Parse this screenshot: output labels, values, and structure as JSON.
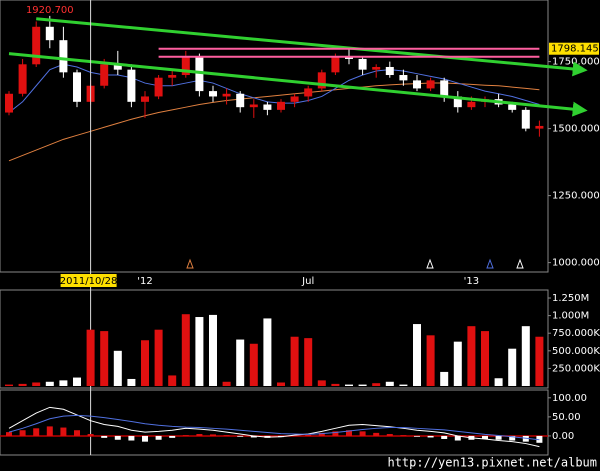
{
  "chart_data": [
    {
      "type": "candlestick",
      "categories": [
        null,
        null,
        null,
        null,
        null,
        null,
        "2011/10/28",
        null,
        null,
        null,
        "'12",
        null,
        null,
        null,
        null,
        null,
        null,
        null,
        null,
        null,
        null,
        null,
        "Jul",
        null,
        null,
        null,
        null,
        null,
        null,
        null,
        null,
        null,
        null,
        null,
        "'13",
        null,
        null,
        null,
        null,
        null
      ],
      "highlight_category": "2011/10/28",
      "ohlc": [
        [
          1560,
          1640,
          1550,
          1630
        ],
        [
          1630,
          1760,
          1620,
          1740
        ],
        [
          1740,
          1900,
          1730,
          1880
        ],
        [
          1880,
          1920.7,
          1800,
          1830
        ],
        [
          1830,
          1880,
          1690,
          1710
        ],
        [
          1710,
          1720,
          1580,
          1600
        ],
        [
          1600,
          1680,
          1590,
          1660
        ],
        [
          1660,
          1760,
          1650,
          1740
        ],
        [
          1740,
          1790,
          1700,
          1720
        ],
        [
          1720,
          1740,
          1580,
          1600
        ],
        [
          1600,
          1640,
          1540,
          1620
        ],
        [
          1620,
          1700,
          1610,
          1690
        ],
        [
          1690,
          1720,
          1660,
          1700
        ],
        [
          1700,
          1790,
          1690,
          1770
        ],
        [
          1770,
          1780,
          1620,
          1640
        ],
        [
          1640,
          1660,
          1600,
          1620
        ],
        [
          1620,
          1650,
          1590,
          1630
        ],
        [
          1630,
          1640,
          1560,
          1580
        ],
        [
          1580,
          1610,
          1540,
          1590
        ],
        [
          1590,
          1600,
          1550,
          1570
        ],
        [
          1570,
          1610,
          1560,
          1600
        ],
        [
          1600,
          1630,
          1580,
          1620
        ],
        [
          1620,
          1660,
          1600,
          1650
        ],
        [
          1650,
          1720,
          1640,
          1710
        ],
        [
          1710,
          1780,
          1700,
          1770
        ],
        [
          1770,
          1800,
          1740,
          1760
        ],
        [
          1760,
          1770,
          1700,
          1720
        ],
        [
          1720,
          1740,
          1690,
          1730
        ],
        [
          1730,
          1750,
          1690,
          1700
        ],
        [
          1700,
          1720,
          1660,
          1680
        ],
        [
          1680,
          1700,
          1640,
          1650
        ],
        [
          1650,
          1690,
          1640,
          1680
        ],
        [
          1680,
          1690,
          1600,
          1620
        ],
        [
          1620,
          1640,
          1560,
          1580
        ],
        [
          1580,
          1620,
          1570,
          1600
        ],
        [
          1600,
          1620,
          1580,
          1610
        ],
        [
          1610,
          1630,
          1580,
          1590
        ],
        [
          1590,
          1600,
          1560,
          1570
        ],
        [
          1570,
          1580,
          1490,
          1500
        ],
        [
          1500,
          1530,
          1470,
          1510
        ]
      ],
      "up_color": "#e01010",
      "down_color": "#ffffff",
      "moving_averages": [
        {
          "color": "#e08040",
          "values": [
            1380,
            1400,
            1420,
            1440,
            1460,
            1475,
            1490,
            1505,
            1520,
            1535,
            1548,
            1560,
            1570,
            1580,
            1590,
            1598,
            1605,
            1610,
            1615,
            1620,
            1625,
            1630,
            1635,
            1640,
            1645,
            1650,
            1655,
            1660,
            1663,
            1666,
            1668,
            1670,
            1670,
            1668,
            1665,
            1662,
            1660,
            1655,
            1650,
            1645
          ]
        },
        {
          "color": "#5070e0",
          "values": [
            1560,
            1600,
            1660,
            1720,
            1740,
            1730,
            1710,
            1700,
            1700,
            1690,
            1670,
            1660,
            1660,
            1670,
            1680,
            1670,
            1650,
            1630,
            1615,
            1600,
            1595,
            1595,
            1605,
            1620,
            1650,
            1680,
            1700,
            1715,
            1720,
            1715,
            1705,
            1695,
            1685,
            1670,
            1655,
            1640,
            1630,
            1620,
            1605,
            1590
          ]
        }
      ],
      "trendlines": [
        {
          "color": "#30d030",
          "points": [
            [
              2,
              1910
            ],
            [
              42,
              1720
            ]
          ]
        },
        {
          "color": "#30d030",
          "points": [
            [
              0,
              1780
            ],
            [
              42,
              1570
            ]
          ]
        },
        {
          "color": "#ff5fa0",
          "points": [
            [
              11,
              1798.145
            ],
            [
              39,
              1798.145
            ]
          ]
        },
        {
          "color": "#ff5fa0",
          "points": [
            [
              11,
              1768
            ],
            [
              39,
              1768
            ]
          ]
        }
      ],
      "high_label": {
        "value": 1920.7,
        "label": "1920.700"
      },
      "last_price": {
        "value": 1798.145,
        "label": "1798.145"
      },
      "ylim": [
        965,
        1965
      ],
      "yticks": [
        {
          "value": 1000,
          "label": "1000.000"
        },
        {
          "value": 1250,
          "label": "1250.000"
        },
        {
          "value": 1500,
          "label": "1500.000"
        },
        {
          "value": 1750,
          "label": "1750.000"
        }
      ]
    },
    {
      "type": "volume",
      "values": [
        20000,
        30000,
        50000,
        60000,
        80000,
        120000,
        800000,
        780000,
        500000,
        100000,
        650000,
        800000,
        150000,
        1020000,
        980000,
        1010000,
        60000,
        660000,
        600000,
        960000,
        50000,
        700000,
        680000,
        80000,
        30000,
        20000,
        20000,
        40000,
        60000,
        20000,
        880000,
        720000,
        200000,
        630000,
        850000,
        780000,
        110000,
        530000,
        850000,
        700000
      ],
      "ylim": [
        0,
        1300000
      ],
      "yticks": [
        {
          "value": 250000,
          "label": "250.000K"
        },
        {
          "value": 500000,
          "label": "500.000K"
        },
        {
          "value": 750000,
          "label": "750.000K"
        },
        {
          "value": 1000000,
          "label": "1.000M"
        },
        {
          "value": 1250000,
          "label": "1.250M"
        }
      ]
    },
    {
      "type": "macd",
      "histogram": [
        10,
        15,
        20,
        25,
        22,
        15,
        5,
        -5,
        -10,
        -12,
        -15,
        -10,
        -5,
        2,
        5,
        4,
        2,
        -2,
        -4,
        -5,
        -3,
        0,
        3,
        8,
        12,
        15,
        12,
        8,
        5,
        2,
        -2,
        -4,
        -8,
        -12,
        -10,
        -8,
        -10,
        -12,
        -15,
        -18
      ],
      "series": [
        {
          "color": "#ffffff",
          "values": [
            20,
            40,
            60,
            75,
            70,
            55,
            40,
            30,
            25,
            15,
            10,
            12,
            15,
            20,
            18,
            15,
            10,
            5,
            0,
            -3,
            -2,
            2,
            5,
            12,
            20,
            28,
            30,
            27,
            24,
            20,
            15,
            12,
            8,
            0,
            -5,
            -8,
            -12,
            -15,
            -20,
            -28
          ]
        },
        {
          "color": "#5070e0",
          "values": [
            10,
            20,
            32,
            45,
            52,
            54,
            52,
            48,
            43,
            38,
            32,
            28,
            25,
            23,
            22,
            20,
            18,
            15,
            12,
            9,
            6,
            5,
            4,
            6,
            9,
            13,
            17,
            20,
            22,
            22,
            20,
            18,
            16,
            12,
            8,
            4,
            1,
            -2,
            -6,
            -10
          ]
        }
      ],
      "ylim": [
        -50,
        110
      ],
      "yticks": [
        {
          "value": 0,
          "label": "0.00"
        },
        {
          "value": 50,
          "label": "50.00"
        },
        {
          "value": 100,
          "label": "100.00"
        }
      ]
    }
  ],
  "watermark": "http://yen13.pixnet.net/album"
}
